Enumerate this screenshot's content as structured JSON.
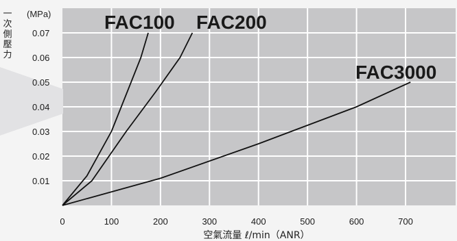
{
  "chart_data": {
    "type": "line",
    "y_axis": {
      "unit": "(MPa)",
      "title_chars": [
        "一",
        "次",
        "側",
        "壓",
        "力"
      ],
      "range": [
        0,
        0.075
      ],
      "ticks": [
        0.07,
        0.06,
        0.05,
        0.04,
        0.03,
        0.02,
        0.01
      ]
    },
    "x_axis": {
      "label": "空氣流量 ℓ/min（ANR）",
      "range": [
        0,
        780
      ],
      "ticks": [
        0,
        100,
        200,
        300,
        400,
        500,
        600,
        700
      ]
    },
    "grid": true,
    "series": [
      {
        "name": "FAC100",
        "points": [
          [
            0,
            0
          ],
          [
            50,
            0.012
          ],
          [
            100,
            0.03
          ],
          [
            130,
            0.045
          ],
          [
            160,
            0.06
          ],
          [
            175,
            0.07
          ]
        ]
      },
      {
        "name": "FAC200",
        "points": [
          [
            0,
            0
          ],
          [
            60,
            0.01
          ],
          [
            130,
            0.03
          ],
          [
            190,
            0.046
          ],
          [
            240,
            0.06
          ],
          [
            265,
            0.07
          ]
        ]
      },
      {
        "name": "FAC3000",
        "points": [
          [
            0,
            0
          ],
          [
            200,
            0.011
          ],
          [
            400,
            0.025
          ],
          [
            600,
            0.04
          ],
          [
            710,
            0.05
          ]
        ]
      }
    ],
    "colors": {
      "plot_bg": "#c6c6c8",
      "grid": "#ffffff",
      "line": "#111111",
      "text": "#1a1a1a",
      "label": "#222222"
    }
  }
}
